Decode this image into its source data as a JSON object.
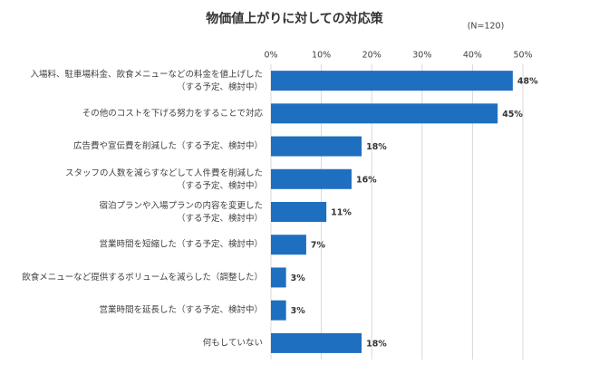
{
  "chart_data": {
    "type": "barh",
    "title": "物価値上がりに対しての対応策",
    "subtitle": "(N=120)",
    "categories": [
      "入場料、駐車場料金、飲食メニューなどの料金を値上げした\n（する予定、検討中）",
      "その他のコストを下げる努力をすることで対応",
      "広告費や宣伝費を削減した（する予定、検討中）",
      "スタッフの人数を減らすなどして人件費を削減した\n（する予定、検討中）",
      "宿泊プランや入場プランの内容を変更した\n（する予定、検討中）",
      "営業時間を短縮した（する予定、検討中）",
      "飲食メニューなど提供するボリュームを減らした（調整した）",
      "営業時間を延長した（する予定、検討中）",
      "何もしていない"
    ],
    "values": [
      48,
      45,
      18,
      16,
      11,
      7,
      3,
      3,
      18
    ],
    "value_labels": [
      "48%",
      "45%",
      "18%",
      "16%",
      "11%",
      "7%",
      "3%",
      "3%",
      "18%"
    ],
    "color": "#1f6fc0",
    "xlim": [
      0,
      50
    ],
    "xticks": [
      {
        "value": 0,
        "label": "0%"
      },
      {
        "value": 10,
        "label": "10%"
      },
      {
        "value": 20,
        "label": "20%"
      },
      {
        "value": 30,
        "label": "30%"
      },
      {
        "value": 40,
        "label": "40%"
      },
      {
        "value": 50,
        "label": "50%"
      }
    ],
    "grid": true
  }
}
